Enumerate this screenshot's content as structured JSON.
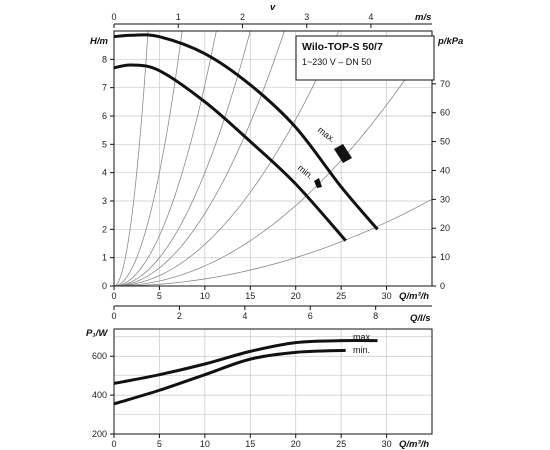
{
  "chart_data": [
    {
      "type": "line",
      "title": "Wilo-TOP-S 50/7",
      "subtitle": "1~230 V – DN 50",
      "xlabel": "Q/m³/h",
      "ylabel": "H/m",
      "y2label": "p/kPa",
      "x2label": "v",
      "x2unit": "m/s",
      "x3label": "Q/l/s",
      "xlim": [
        0,
        35
      ],
      "ylim": [
        0,
        9
      ],
      "x_ticks": [
        "0",
        "5",
        "10",
        "15",
        "20",
        "25",
        "30"
      ],
      "y_ticks": [
        "0",
        "1",
        "2",
        "3",
        "4",
        "5",
        "6",
        "7",
        "8"
      ],
      "y2_ticks": [
        "0",
        "10",
        "20",
        "30",
        "40",
        "50",
        "60",
        "70"
      ],
      "x2_ticks": [
        "0",
        "1",
        "2",
        "3",
        "4"
      ],
      "x3_ticks": [
        "0",
        "2",
        "4",
        "6",
        "8"
      ],
      "grid": true,
      "series": [
        {
          "name": "max.",
          "x": [
            0,
            2,
            5,
            10,
            15,
            20,
            25,
            29
          ],
          "y": [
            8.8,
            8.85,
            8.8,
            8.2,
            7.1,
            5.6,
            3.5,
            2.0
          ]
        },
        {
          "name": "min.",
          "x": [
            0,
            2,
            5,
            10,
            15,
            20,
            25.5
          ],
          "y": [
            7.7,
            7.8,
            7.6,
            6.5,
            5.1,
            3.6,
            1.6
          ]
        }
      ]
    },
    {
      "type": "line",
      "ylabel": "P₁/W",
      "xlabel": "Q/m³/h",
      "xlim": [
        0,
        35
      ],
      "ylim": [
        200,
        740
      ],
      "x_ticks": [
        "0",
        "5",
        "10",
        "15",
        "20",
        "25",
        "30"
      ],
      "y_ticks": [
        "200",
        "400",
        "600"
      ],
      "grid": true,
      "series": [
        {
          "name": "max.",
          "x": [
            0,
            5,
            10,
            15,
            20,
            25,
            29
          ],
          "y": [
            460,
            505,
            560,
            625,
            670,
            680,
            680
          ]
        },
        {
          "name": "min.",
          "x": [
            0,
            5,
            10,
            15,
            20,
            25.5
          ],
          "y": [
            355,
            425,
            505,
            585,
            620,
            630
          ]
        }
      ]
    }
  ]
}
